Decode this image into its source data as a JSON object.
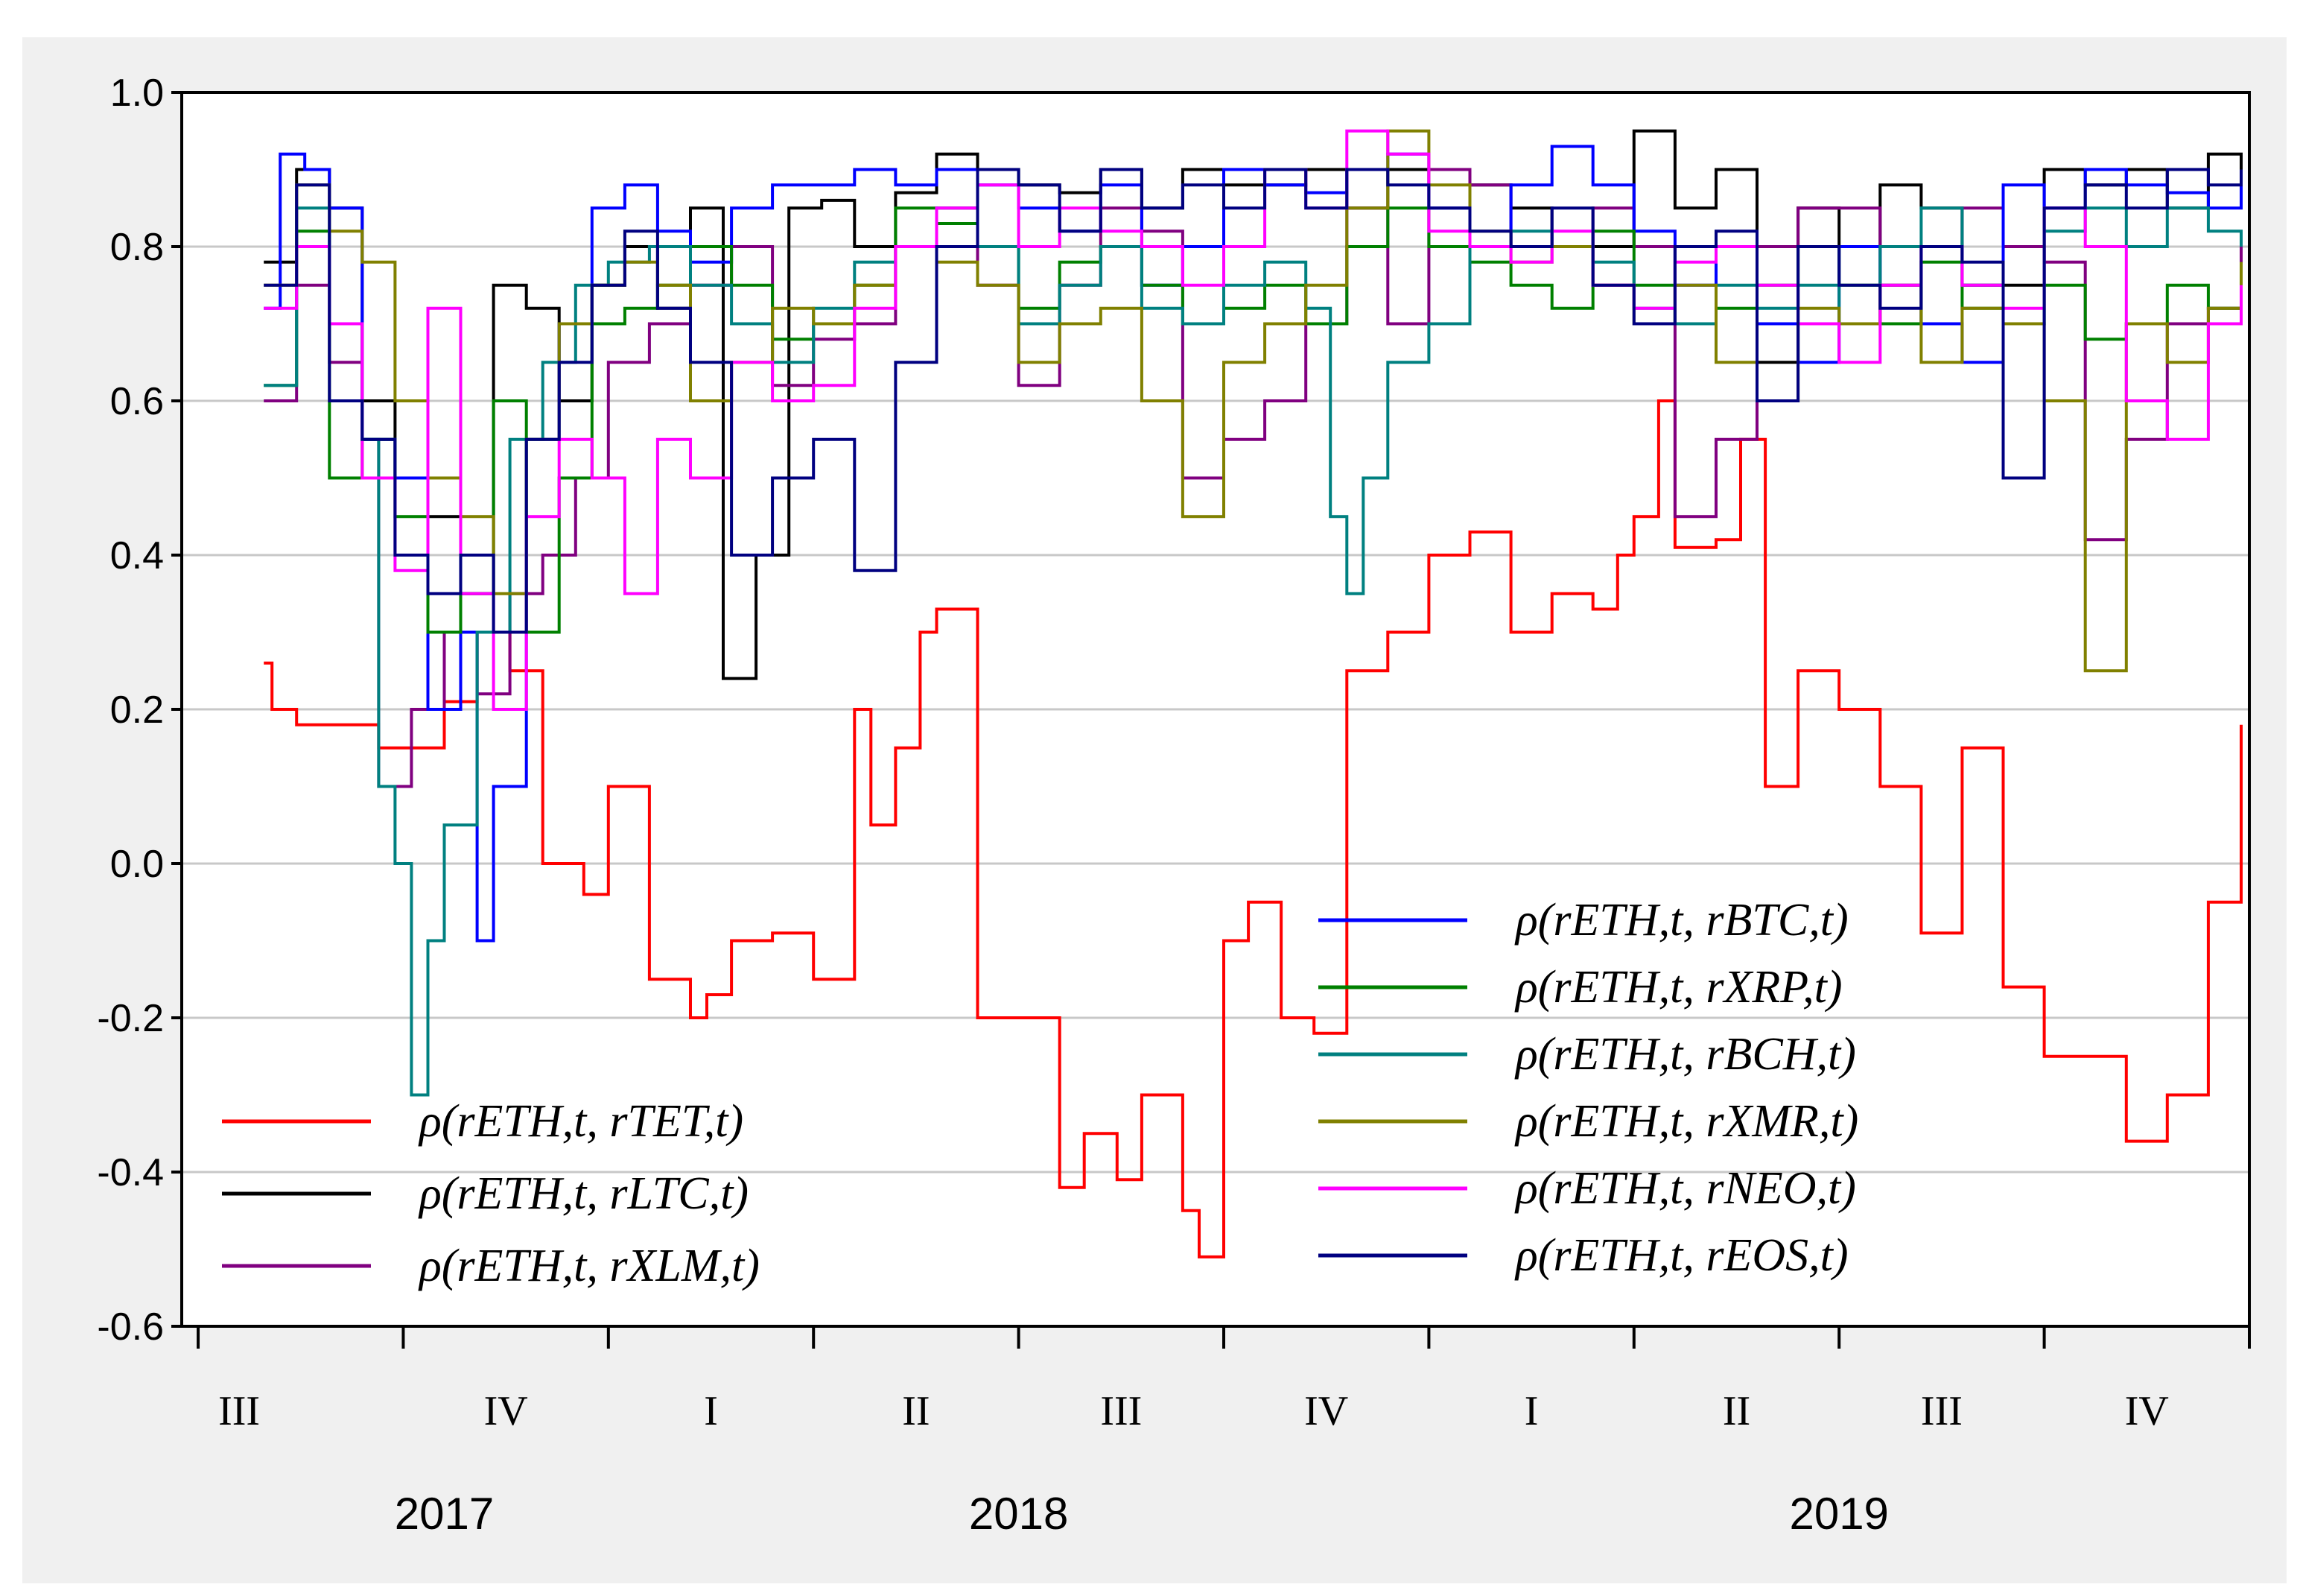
{
  "chart_data": {
    "type": "line",
    "y_range": [
      -0.6,
      1.0
    ],
    "y_ticks": [
      "1.0",
      "0.8",
      "0.6",
      "0.4",
      "0.2",
      "0.0",
      "-0.2",
      "-0.4",
      "-0.6"
    ],
    "grid": "horizontal",
    "x_axis": {
      "quarters": [
        "III",
        "IV",
        "I",
        "II",
        "III",
        "IV",
        "I",
        "II",
        "III",
        "IV"
      ],
      "years": [
        "2017",
        "2018",
        "2019"
      ],
      "date_range": [
        "2017-07",
        "2019-12"
      ]
    },
    "x_ticks_years": [
      2017.5,
      2017.75,
      2018.0,
      2018.25,
      2018.5,
      2018.75,
      2019.0,
      2019.25,
      2019.5,
      2019.75,
      2020.0
    ],
    "legend_left": [
      {
        "label": "ρ(rETH,t, rTET,t)",
        "color": "#ff0000"
      },
      {
        "label": "ρ(rETH,t, rLTC,t)",
        "color": "#000000"
      },
      {
        "label": "ρ(rETH,t, rXLM,t)",
        "color": "#800080"
      }
    ],
    "legend_right": [
      {
        "label": "ρ(rETH,t, rBTC,t)",
        "color": "#0000ff"
      },
      {
        "label": "ρ(rETH,t, rXRP,t)",
        "color": "#008000"
      },
      {
        "label": "ρ(rETH,t, rBCH,t)",
        "color": "#008080"
      },
      {
        "label": "ρ(rETH,t, rXMR,t)",
        "color": "#808000"
      },
      {
        "label": "ρ(rETH,t, rNEO,t)",
        "color": "#ff00ff"
      },
      {
        "label": "ρ(rETH,t, rEOS,t)",
        "color": "#000080"
      }
    ],
    "series": [
      {
        "name": "ρ(rETH,t, rTET,t)",
        "color": "#ff0000",
        "x": [
          2017.58,
          2017.59,
          2017.62,
          2017.65,
          2017.72,
          2017.76,
          2017.8,
          2017.84,
          2017.88,
          2017.92,
          2017.97,
          2018.0,
          2018.05,
          2018.1,
          2018.12,
          2018.15,
          2018.2,
          2018.25,
          2018.3,
          2018.32,
          2018.35,
          2018.38,
          2018.4,
          2018.45,
          2018.5,
          2018.55,
          2018.58,
          2018.62,
          2018.65,
          2018.7,
          2018.72,
          2018.75,
          2018.78,
          2018.82,
          2018.86,
          2018.9,
          2018.95,
          2019.0,
          2019.05,
          2019.1,
          2019.15,
          2019.2,
          2019.23,
          2019.25,
          2019.28,
          2019.3,
          2019.35,
          2019.38,
          2019.41,
          2019.45,
          2019.5,
          2019.55,
          2019.6,
          2019.65,
          2019.7,
          2019.75,
          2019.8,
          2019.85,
          2019.9,
          2019.95,
          2019.99
        ],
        "y": [
          0.26,
          0.2,
          0.18,
          0.18,
          0.15,
          0.15,
          0.21,
          0.3,
          0.25,
          0.0,
          -0.04,
          0.1,
          -0.15,
          -0.2,
          -0.17,
          -0.1,
          -0.09,
          -0.15,
          0.2,
          0.05,
          0.15,
          0.3,
          0.33,
          -0.2,
          -0.2,
          -0.42,
          -0.35,
          -0.41,
          -0.3,
          -0.45,
          -0.51,
          -0.1,
          -0.05,
          -0.2,
          -0.22,
          0.25,
          0.3,
          0.4,
          0.43,
          0.3,
          0.35,
          0.33,
          0.4,
          0.45,
          0.6,
          0.41,
          0.42,
          0.55,
          0.1,
          0.25,
          0.2,
          0.1,
          -0.09,
          0.15,
          -0.16,
          -0.25,
          -0.25,
          -0.36,
          -0.3,
          -0.05,
          0.18
        ]
      },
      {
        "name": "ρ(rETH,t, rLTC,t)",
        "color": "#000000",
        "x": [
          2017.58,
          2017.62,
          2017.66,
          2017.7,
          2017.74,
          2017.78,
          2017.82,
          2017.86,
          2017.9,
          2017.94,
          2017.98,
          2018.02,
          2018.06,
          2018.1,
          2018.14,
          2018.18,
          2018.22,
          2018.26,
          2018.3,
          2018.35,
          2018.4,
          2018.45,
          2018.5,
          2018.55,
          2018.6,
          2018.65,
          2018.7,
          2018.75,
          2018.8,
          2018.85,
          2018.9,
          2018.95,
          2019.0,
          2019.05,
          2019.1,
          2019.15,
          2019.2,
          2019.25,
          2019.3,
          2019.35,
          2019.4,
          2019.45,
          2019.5,
          2019.55,
          2019.6,
          2019.65,
          2019.7,
          2019.75,
          2019.8,
          2019.85,
          2019.9,
          2019.95,
          2019.99
        ],
        "y": [
          0.78,
          0.9,
          0.85,
          0.6,
          0.5,
          0.45,
          0.35,
          0.75,
          0.72,
          0.6,
          0.75,
          0.8,
          0.72,
          0.85,
          0.24,
          0.4,
          0.85,
          0.86,
          0.8,
          0.87,
          0.92,
          0.9,
          0.88,
          0.87,
          0.9,
          0.85,
          0.9,
          0.88,
          0.88,
          0.9,
          0.85,
          0.9,
          0.9,
          0.88,
          0.85,
          0.8,
          0.8,
          0.95,
          0.85,
          0.9,
          0.65,
          0.85,
          0.8,
          0.88,
          0.85,
          0.75,
          0.75,
          0.9,
          0.88,
          0.9,
          0.85,
          0.92,
          0.9
        ]
      },
      {
        "name": "ρ(rETH,t, rXLM,t)",
        "color": "#800080",
        "x": [
          2017.58,
          2017.62,
          2017.66,
          2017.7,
          2017.72,
          2017.76,
          2017.8,
          2017.84,
          2017.88,
          2017.92,
          2017.96,
          2018.0,
          2018.05,
          2018.1,
          2018.15,
          2018.2,
          2018.25,
          2018.3,
          2018.35,
          2018.4,
          2018.45,
          2018.5,
          2018.55,
          2018.6,
          2018.65,
          2018.7,
          2018.75,
          2018.8,
          2018.85,
          2018.9,
          2018.95,
          2019.0,
          2019.05,
          2019.1,
          2019.15,
          2019.2,
          2019.25,
          2019.3,
          2019.35,
          2019.4,
          2019.45,
          2019.5,
          2019.55,
          2019.6,
          2019.65,
          2019.7,
          2019.75,
          2019.8,
          2019.85,
          2019.9,
          2019.95,
          2019.99
        ],
        "y": [
          0.6,
          0.75,
          0.65,
          0.55,
          0.1,
          0.2,
          0.3,
          0.22,
          0.35,
          0.4,
          0.5,
          0.65,
          0.7,
          0.75,
          0.8,
          0.62,
          0.68,
          0.7,
          0.8,
          0.85,
          0.75,
          0.62,
          0.75,
          0.85,
          0.82,
          0.5,
          0.55,
          0.6,
          0.7,
          0.85,
          0.7,
          0.9,
          0.88,
          0.8,
          0.8,
          0.85,
          0.8,
          0.45,
          0.55,
          0.8,
          0.85,
          0.85,
          0.7,
          0.8,
          0.85,
          0.8,
          0.78,
          0.42,
          0.55,
          0.7,
          0.72,
          0.8
        ]
      },
      {
        "name": "ρ(rETH,t, rBTC,t)",
        "color": "#0000ff",
        "x": [
          2017.58,
          2017.6,
          2017.63,
          2017.66,
          2017.7,
          2017.74,
          2017.78,
          2017.82,
          2017.84,
          2017.86,
          2017.9,
          2017.94,
          2017.98,
          2018.02,
          2018.06,
          2018.1,
          2018.15,
          2018.2,
          2018.25,
          2018.3,
          2018.35,
          2018.4,
          2018.45,
          2018.5,
          2018.55,
          2018.6,
          2018.65,
          2018.7,
          2018.75,
          2018.8,
          2018.85,
          2018.9,
          2018.95,
          2019.0,
          2019.05,
          2019.1,
          2019.15,
          2019.2,
          2019.25,
          2019.3,
          2019.35,
          2019.4,
          2019.45,
          2019.5,
          2019.55,
          2019.6,
          2019.65,
          2019.7,
          2019.75,
          2019.8,
          2019.85,
          2019.9,
          2019.95,
          2019.99
        ],
        "y": [
          0.72,
          0.92,
          0.9,
          0.85,
          0.55,
          0.5,
          0.2,
          0.3,
          -0.1,
          0.1,
          0.55,
          0.7,
          0.85,
          0.88,
          0.82,
          0.78,
          0.85,
          0.88,
          0.88,
          0.9,
          0.88,
          0.9,
          0.88,
          0.85,
          0.82,
          0.88,
          0.75,
          0.8,
          0.9,
          0.88,
          0.87,
          0.9,
          0.92,
          0.85,
          0.8,
          0.88,
          0.93,
          0.88,
          0.82,
          0.75,
          0.8,
          0.7,
          0.65,
          0.8,
          0.75,
          0.7,
          0.65,
          0.88,
          0.85,
          0.9,
          0.88,
          0.87,
          0.85,
          0.88
        ]
      },
      {
        "name": "ρ(rETH,t, rXRP,t)",
        "color": "#008000",
        "x": [
          2017.58,
          2017.62,
          2017.66,
          2017.7,
          2017.74,
          2017.78,
          2017.82,
          2017.86,
          2017.9,
          2017.94,
          2017.98,
          2018.02,
          2018.06,
          2018.1,
          2018.15,
          2018.2,
          2018.25,
          2018.3,
          2018.35,
          2018.4,
          2018.45,
          2018.5,
          2018.55,
          2018.6,
          2018.65,
          2018.7,
          2018.75,
          2018.8,
          2018.85,
          2018.9,
          2018.95,
          2019.0,
          2019.05,
          2019.1,
          2019.15,
          2019.2,
          2019.25,
          2019.3,
          2019.35,
          2019.4,
          2019.45,
          2019.5,
          2019.55,
          2019.6,
          2019.65,
          2019.7,
          2019.75,
          2019.8,
          2019.85,
          2019.9,
          2019.95,
          2019.99
        ],
        "y": [
          0.62,
          0.82,
          0.5,
          0.55,
          0.45,
          0.3,
          0.35,
          0.6,
          0.3,
          0.5,
          0.7,
          0.72,
          0.75,
          0.8,
          0.75,
          0.68,
          0.7,
          0.75,
          0.85,
          0.83,
          0.8,
          0.72,
          0.78,
          0.8,
          0.75,
          0.7,
          0.72,
          0.75,
          0.7,
          0.8,
          0.85,
          0.8,
          0.78,
          0.75,
          0.72,
          0.82,
          0.75,
          0.7,
          0.72,
          0.75,
          0.8,
          0.75,
          0.7,
          0.78,
          0.72,
          0.7,
          0.75,
          0.68,
          0.7,
          0.75,
          0.72,
          0.78
        ]
      },
      {
        "name": "ρ(rETH,t, rBCH,t)",
        "color": "#008080",
        "x": [
          2017.58,
          2017.62,
          2017.66,
          2017.7,
          2017.72,
          2017.74,
          2017.76,
          2017.78,
          2017.8,
          2017.84,
          2017.88,
          2017.92,
          2017.96,
          2018.0,
          2018.05,
          2018.1,
          2018.15,
          2018.2,
          2018.25,
          2018.3,
          2018.35,
          2018.4,
          2018.45,
          2018.5,
          2018.55,
          2018.6,
          2018.65,
          2018.7,
          2018.75,
          2018.8,
          2018.85,
          2018.88,
          2018.9,
          2018.92,
          2018.95,
          2019.0,
          2019.05,
          2019.1,
          2019.15,
          2019.2,
          2019.25,
          2019.3,
          2019.35,
          2019.4,
          2019.45,
          2019.5,
          2019.55,
          2019.6,
          2019.65,
          2019.7,
          2019.75,
          2019.8,
          2019.85,
          2019.9,
          2019.95,
          2019.99
        ],
        "y": [
          0.62,
          0.85,
          0.7,
          0.55,
          0.1,
          0.0,
          -0.3,
          -0.1,
          0.05,
          0.3,
          0.55,
          0.65,
          0.75,
          0.78,
          0.8,
          0.75,
          0.7,
          0.65,
          0.72,
          0.78,
          0.8,
          0.85,
          0.8,
          0.7,
          0.75,
          0.8,
          0.72,
          0.7,
          0.75,
          0.78,
          0.72,
          0.45,
          0.35,
          0.5,
          0.65,
          0.7,
          0.8,
          0.82,
          0.8,
          0.78,
          0.72,
          0.7,
          0.75,
          0.72,
          0.75,
          0.7,
          0.8,
          0.85,
          0.75,
          0.7,
          0.82,
          0.85,
          0.8,
          0.85,
          0.82,
          0.8
        ]
      },
      {
        "name": "ρ(rETH,t, rXMR,t)",
        "color": "#808000",
        "x": [
          2017.58,
          2017.62,
          2017.66,
          2017.7,
          2017.74,
          2017.78,
          2017.82,
          2017.86,
          2017.9,
          2017.94,
          2017.98,
          2018.02,
          2018.06,
          2018.1,
          2018.15,
          2018.2,
          2018.25,
          2018.3,
          2018.35,
          2018.4,
          2018.45,
          2018.5,
          2018.55,
          2018.6,
          2018.65,
          2018.7,
          2018.75,
          2018.8,
          2018.85,
          2018.9,
          2018.95,
          2019.0,
          2019.05,
          2019.1,
          2019.15,
          2019.2,
          2019.25,
          2019.3,
          2019.35,
          2019.4,
          2019.45,
          2019.5,
          2019.55,
          2019.6,
          2019.65,
          2019.7,
          2019.75,
          2019.8,
          2019.85,
          2019.9,
          2019.95,
          2019.99
        ],
        "y": [
          0.75,
          0.88,
          0.82,
          0.78,
          0.6,
          0.5,
          0.45,
          0.35,
          0.55,
          0.7,
          0.75,
          0.78,
          0.75,
          0.6,
          0.65,
          0.72,
          0.7,
          0.75,
          0.8,
          0.78,
          0.75,
          0.65,
          0.7,
          0.72,
          0.6,
          0.45,
          0.65,
          0.7,
          0.75,
          0.85,
          0.95,
          0.88,
          0.82,
          0.78,
          0.8,
          0.75,
          0.7,
          0.75,
          0.65,
          0.6,
          0.72,
          0.7,
          0.75,
          0.65,
          0.72,
          0.7,
          0.6,
          0.25,
          0.7,
          0.65,
          0.72,
          0.78
        ]
      },
      {
        "name": "ρ(rETH,t, rNEO,t)",
        "color": "#ff00ff",
        "x": [
          2017.58,
          2017.62,
          2017.66,
          2017.7,
          2017.74,
          2017.78,
          2017.82,
          2017.86,
          2017.9,
          2017.94,
          2017.98,
          2018.02,
          2018.06,
          2018.1,
          2018.15,
          2018.2,
          2018.25,
          2018.3,
          2018.35,
          2018.4,
          2018.45,
          2018.5,
          2018.55,
          2018.6,
          2018.65,
          2018.7,
          2018.75,
          2018.8,
          2018.85,
          2018.9,
          2018.95,
          2019.0,
          2019.05,
          2019.1,
          2019.15,
          2019.2,
          2019.25,
          2019.3,
          2019.35,
          2019.4,
          2019.45,
          2019.5,
          2019.55,
          2019.6,
          2019.65,
          2019.7,
          2019.75,
          2019.8,
          2019.85,
          2019.9,
          2019.95,
          2019.99
        ],
        "y": [
          0.72,
          0.8,
          0.7,
          0.5,
          0.38,
          0.72,
          0.35,
          0.2,
          0.45,
          0.55,
          0.5,
          0.35,
          0.55,
          0.5,
          0.65,
          0.6,
          0.62,
          0.72,
          0.8,
          0.85,
          0.88,
          0.8,
          0.85,
          0.82,
          0.8,
          0.75,
          0.8,
          0.9,
          0.85,
          0.95,
          0.92,
          0.82,
          0.8,
          0.78,
          0.82,
          0.75,
          0.72,
          0.78,
          0.8,
          0.75,
          0.7,
          0.65,
          0.75,
          0.8,
          0.75,
          0.72,
          0.85,
          0.8,
          0.6,
          0.55,
          0.7,
          0.75
        ]
      },
      {
        "name": "ρ(rETH,t, rEOS,t)",
        "color": "#000080",
        "x": [
          2017.58,
          2017.62,
          2017.66,
          2017.7,
          2017.74,
          2017.78,
          2017.82,
          2017.86,
          2017.9,
          2017.94,
          2017.98,
          2018.02,
          2018.06,
          2018.1,
          2018.15,
          2018.2,
          2018.25,
          2018.3,
          2018.35,
          2018.4,
          2018.45,
          2018.5,
          2018.55,
          2018.6,
          2018.65,
          2018.7,
          2018.75,
          2018.8,
          2018.85,
          2018.9,
          2018.95,
          2019.0,
          2019.05,
          2019.1,
          2019.15,
          2019.2,
          2019.25,
          2019.3,
          2019.35,
          2019.4,
          2019.45,
          2019.5,
          2019.55,
          2019.6,
          2019.65,
          2019.7,
          2019.75,
          2019.8,
          2019.85,
          2019.9,
          2019.95,
          2019.99
        ],
        "y": [
          0.75,
          0.88,
          0.6,
          0.55,
          0.4,
          0.35,
          0.4,
          0.3,
          0.55,
          0.65,
          0.75,
          0.82,
          0.72,
          0.65,
          0.4,
          0.5,
          0.55,
          0.38,
          0.65,
          0.8,
          0.9,
          0.88,
          0.82,
          0.9,
          0.85,
          0.88,
          0.85,
          0.9,
          0.85,
          0.9,
          0.88,
          0.85,
          0.82,
          0.8,
          0.85,
          0.75,
          0.7,
          0.8,
          0.82,
          0.6,
          0.8,
          0.75,
          0.72,
          0.8,
          0.78,
          0.5,
          0.85,
          0.88,
          0.85,
          0.9,
          0.88,
          0.9
        ]
      }
    ]
  }
}
